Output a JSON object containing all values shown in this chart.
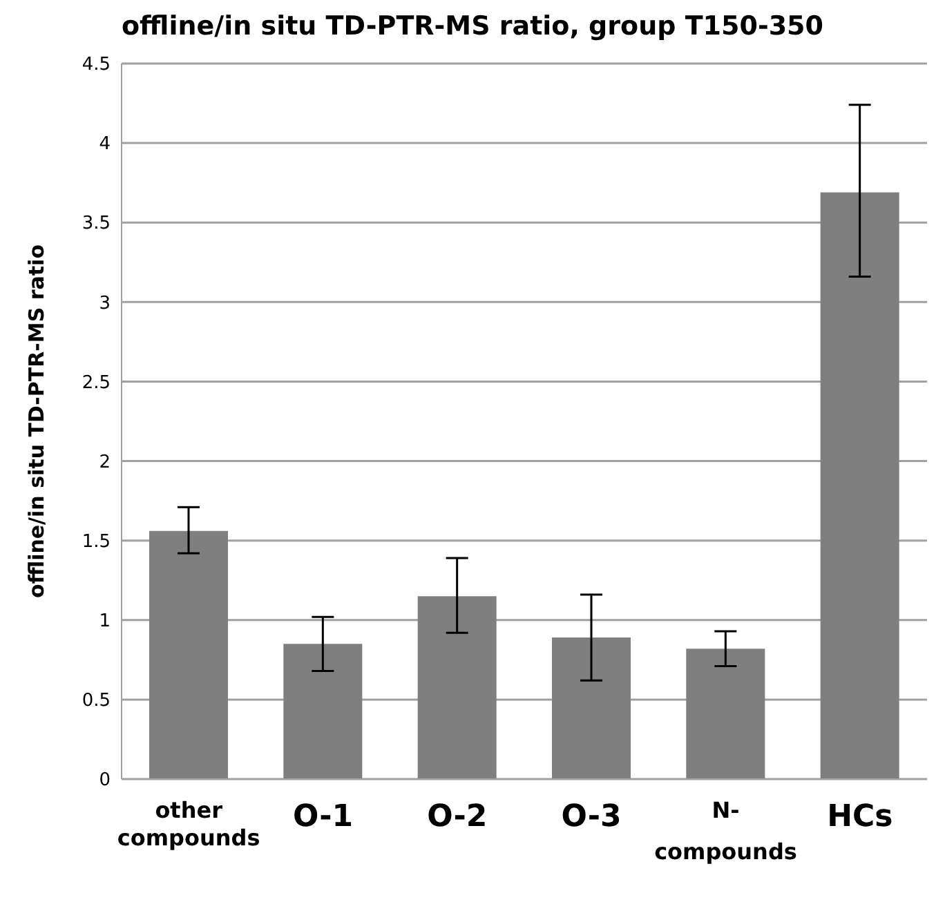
{
  "chart_data": {
    "type": "bar",
    "title": "offline/in situ TD-PTR-MS ratio, group T150-350",
    "ylabel": "offline/in situ TD-PTR-MS ratio",
    "categories": [
      "other compounds",
      "O-1",
      "O-2",
      "O-3",
      "N-compounds",
      "HCs"
    ],
    "values": [
      1.56,
      0.85,
      1.15,
      0.89,
      0.82,
      3.69
    ],
    "errors": [
      [
        1.42,
        1.71
      ],
      [
        0.68,
        1.02
      ],
      [
        0.92,
        1.39
      ],
      [
        0.62,
        1.16
      ],
      [
        0.71,
        0.93
      ],
      [
        3.16,
        4.24
      ]
    ],
    "color": "#7f7f7f",
    "ylim": [
      0,
      4.5
    ],
    "yticks": [
      0,
      0.5,
      1,
      1.5,
      2,
      2.5,
      3,
      3.5,
      4,
      4.5
    ],
    "grid": "y",
    "legend": false
  }
}
